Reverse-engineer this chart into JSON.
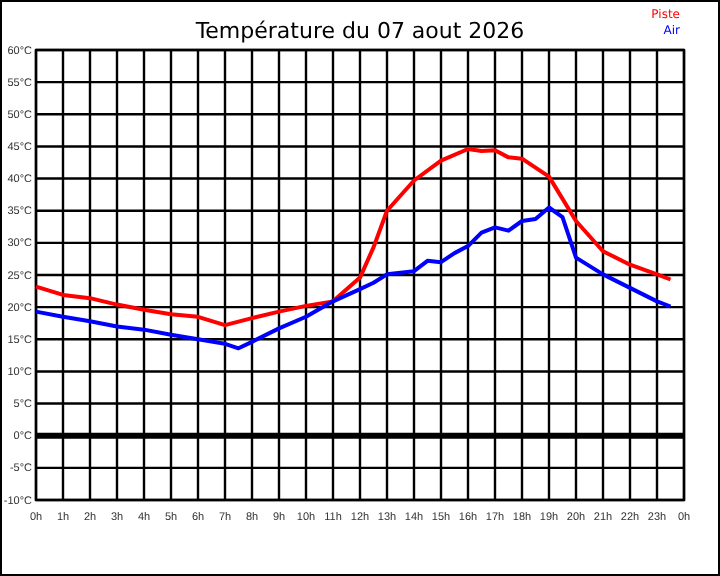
{
  "chart_data": {
    "type": "line",
    "title": "Température du 07 aout 2026",
    "xlim": [
      "2026-08-07T00:00",
      "2026-08-08T00:00"
    ],
    "xticks": [
      {
        "value": "2026-08-07T00:00",
        "label": "0h"
      },
      {
        "value": "2026-08-07T01:00",
        "label": "1h"
      },
      {
        "value": "2026-08-07T02:00",
        "label": "2h"
      },
      {
        "value": "2026-08-07T03:00",
        "label": "3h"
      },
      {
        "value": "2026-08-07T04:00",
        "label": "4h"
      },
      {
        "value": "2026-08-07T05:00",
        "label": "5h"
      },
      {
        "value": "2026-08-07T06:00",
        "label": "6h"
      },
      {
        "value": "2026-08-07T07:00",
        "label": "7h"
      },
      {
        "value": "2026-08-07T08:00",
        "label": "8h"
      },
      {
        "value": "2026-08-07T09:00",
        "label": "9h"
      },
      {
        "value": "2026-08-07T10:00",
        "label": "10h"
      },
      {
        "value": "2026-08-07T11:00",
        "label": "11h"
      },
      {
        "value": "2026-08-07T12:00",
        "label": "12h"
      },
      {
        "value": "2026-08-07T13:00",
        "label": "13h"
      },
      {
        "value": "2026-08-07T14:00",
        "label": "14h"
      },
      {
        "value": "2026-08-07T15:00",
        "label": "15h"
      },
      {
        "value": "2026-08-07T16:00",
        "label": "16h"
      },
      {
        "value": "2026-08-07T17:00",
        "label": "17h"
      },
      {
        "value": "2026-08-07T18:00",
        "label": "18h"
      },
      {
        "value": "2026-08-07T19:00",
        "label": "19h"
      },
      {
        "value": "2026-08-07T20:00",
        "label": "20h"
      },
      {
        "value": "2026-08-07T21:00",
        "label": "21h"
      },
      {
        "value": "2026-08-07T22:00",
        "label": "22h"
      },
      {
        "value": "2026-08-07T23:00",
        "label": "23h"
      },
      {
        "value": "2026-08-08T00:00",
        "label": "0h"
      }
    ],
    "ylim": [
      -10,
      60
    ],
    "yticks": [
      {
        "value": -10,
        "label": "-10°C"
      },
      {
        "value": -5,
        "label": "-5°C"
      },
      {
        "value": 0,
        "label": "0°C"
      },
      {
        "value": 5,
        "label": "5°C"
      },
      {
        "value": 10,
        "label": "10°C"
      },
      {
        "value": 15,
        "label": "15°C"
      },
      {
        "value": 20,
        "label": "20°C"
      },
      {
        "value": 25,
        "label": "25°C"
      },
      {
        "value": 30,
        "label": "30°C"
      },
      {
        "value": 35,
        "label": "35°C"
      },
      {
        "value": 40,
        "label": "40°C"
      },
      {
        "value": 45,
        "label": "45°C"
      },
      {
        "value": 50,
        "label": "50°C"
      },
      {
        "value": 55,
        "label": "55°C"
      },
      {
        "value": 60,
        "label": "60°C"
      }
    ],
    "grid": true,
    "legend": "top right",
    "line_style": "solid",
    "marker": "none",
    "ref_lines": [
      {
        "axis": "y",
        "value": 0,
        "color": "#000000"
      }
    ],
    "series": [
      {
        "name": "Piste",
        "color": "#ff0000",
        "x": [
          "2026-08-07T00:00",
          "2026-08-07T01:00",
          "2026-08-07T02:00",
          "2026-08-07T03:00",
          "2026-08-07T04:00",
          "2026-08-07T05:00",
          "2026-08-07T06:00",
          "2026-08-07T07:00",
          "2026-08-07T08:00",
          "2026-08-07T09:00",
          "2026-08-07T10:00",
          "2026-08-07T11:00",
          "2026-08-07T12:00",
          "2026-08-07T12:30",
          "2026-08-07T13:00",
          "2026-08-07T14:00",
          "2026-08-07T15:00",
          "2026-08-07T16:00",
          "2026-08-07T16:30",
          "2026-08-07T17:00",
          "2026-08-07T17:30",
          "2026-08-07T18:00",
          "2026-08-07T19:00",
          "2026-08-07T20:00",
          "2026-08-07T21:00",
          "2026-08-07T22:00",
          "2026-08-07T23:00",
          "2026-08-07T23:30"
        ],
        "values": [
          23.2,
          21.9,
          21.4,
          20.4,
          19.6,
          18.9,
          18.5,
          17.2,
          18.3,
          19.3,
          20.2,
          20.9,
          24.6,
          29.3,
          35,
          39.7,
          42.8,
          44.6,
          44.3,
          44.4,
          43.3,
          43.1,
          40.3,
          33.4,
          28.7,
          26.6,
          25.1,
          24.3
        ]
      },
      {
        "name": "Air",
        "color": "#0000ff",
        "x": [
          "2026-08-07T00:00",
          "2026-08-07T01:00",
          "2026-08-07T02:00",
          "2026-08-07T03:00",
          "2026-08-07T04:00",
          "2026-08-07T05:00",
          "2026-08-07T06:00",
          "2026-08-07T07:00",
          "2026-08-07T07:30",
          "2026-08-07T08:00",
          "2026-08-07T09:00",
          "2026-08-07T10:00",
          "2026-08-07T11:00",
          "2026-08-07T12:00",
          "2026-08-07T12:30",
          "2026-08-07T13:00",
          "2026-08-07T14:00",
          "2026-08-07T14:30",
          "2026-08-07T15:00",
          "2026-08-07T15:30",
          "2026-08-07T16:00",
          "2026-08-07T16:30",
          "2026-08-07T17:00",
          "2026-08-07T17:30",
          "2026-08-07T18:00",
          "2026-08-07T18:30",
          "2026-08-07T19:00",
          "2026-08-07T19:30",
          "2026-08-07T20:00",
          "2026-08-07T21:00",
          "2026-08-07T22:00",
          "2026-08-07T23:00",
          "2026-08-07T23:30"
        ],
        "values": [
          19.3,
          18.5,
          17.8,
          17,
          16.5,
          15.7,
          15,
          14.3,
          13.6,
          14.6,
          16.7,
          18.5,
          20.9,
          22.8,
          23.8,
          25.1,
          25.6,
          27.2,
          27,
          28.4,
          29.5,
          31.6,
          32.4,
          31.9,
          33.4,
          33.7,
          35.5,
          34,
          27.7,
          25.1,
          23,
          20.9,
          20.1
        ]
      }
    ]
  }
}
